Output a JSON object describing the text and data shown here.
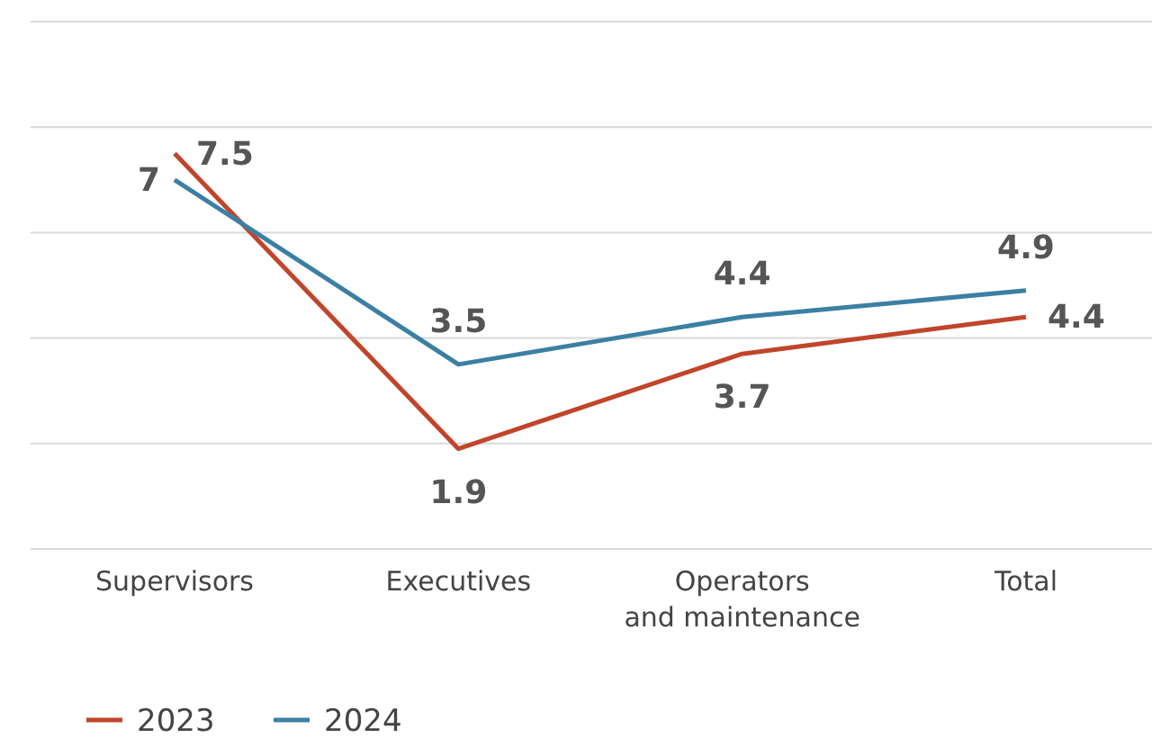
{
  "chart_data": {
    "type": "line",
    "categories": [
      "Supervisors",
      "Executives",
      "Operators\nand maintenance",
      "Total"
    ],
    "series": [
      {
        "name": "2023",
        "color": "#c0452a",
        "values": [
          7.5,
          1.9,
          3.7,
          4.4
        ]
      },
      {
        "name": "2024",
        "color": "#3b80a3",
        "values": [
          7,
          3.5,
          4.4,
          4.9
        ]
      }
    ],
    "ylim": [
      0,
      10
    ],
    "yticks": [
      {
        "value": 0,
        "label": null
      },
      {
        "value": 2,
        "label": null
      },
      {
        "value": 4,
        "label": null
      },
      {
        "value": 6,
        "label": null
      },
      {
        "value": 8,
        "label": null
      },
      {
        "value": 10,
        "label": null
      }
    ],
    "grid": "y",
    "data_labels": true,
    "legend": "bottom left",
    "tick_labels": "x",
    "marker": "none",
    "line_style": "solid"
  }
}
